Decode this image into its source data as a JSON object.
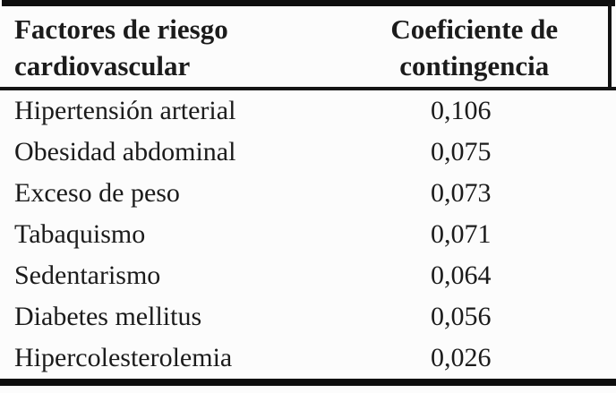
{
  "table": {
    "header": {
      "factors_label": "Factores de riesgo cardiovascular",
      "coefficient_label": "Coeficiente de contingencia"
    },
    "rows": [
      {
        "factor": "Hipertensión arterial",
        "value": "0,106"
      },
      {
        "factor": "Obesidad abdominal",
        "value": "0,075"
      },
      {
        "factor": "Exceso de peso",
        "value": "0,073"
      },
      {
        "factor": "Tabaquismo",
        "value": "0,071"
      },
      {
        "factor": "Sedentarismo",
        "value": "0,064"
      },
      {
        "factor": "Diabetes mellitus",
        "value": "0,056"
      },
      {
        "factor": "Hipercolesterolemia",
        "value": "0,026"
      }
    ]
  },
  "colors": {
    "text": "#1b1b1b",
    "rule": "#0e0e0e",
    "background": "#fcfcfc"
  },
  "chart_data": {
    "type": "table",
    "columns": [
      "Factores de riesgo cardiovascular",
      "Coeficiente de contingencia"
    ],
    "rows": [
      [
        "Hipertensión arterial",
        0.106
      ],
      [
        "Obesidad abdominal",
        0.075
      ],
      [
        "Exceso de peso",
        0.073
      ],
      [
        "Tabaquismo",
        0.071
      ],
      [
        "Sedentarismo",
        0.064
      ],
      [
        "Diabetes mellitus",
        0.056
      ],
      [
        "Hipercolesterolemia",
        0.026
      ]
    ]
  }
}
